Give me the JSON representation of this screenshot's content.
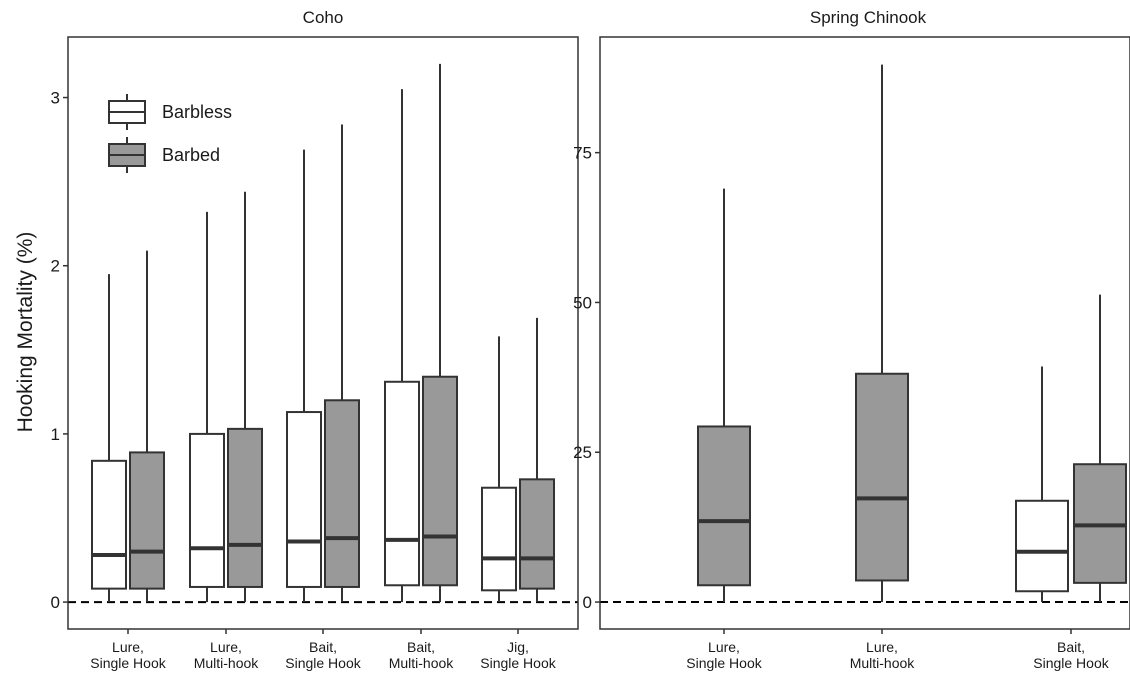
{
  "chart_data": {
    "type": "boxplot",
    "ylabel": "Hooking Mortality (%)",
    "legend": {
      "placement": "top-left",
      "entries": [
        {
          "name": "Barbless",
          "color": "#ffffff"
        },
        {
          "name": "Barbed",
          "color": "#999999"
        }
      ]
    },
    "colors": {
      "Barbless": "#ffffff",
      "Barbed": "#999999",
      "stroke": "#333333"
    },
    "panels": [
      {
        "title": "Coho",
        "ylim": [
          -0.16,
          3.36
        ],
        "yticks": [
          0,
          1,
          2,
          3
        ],
        "categories": [
          [
            "Lure,",
            "Single Hook"
          ],
          [
            "Lure,",
            "Multi-hook"
          ],
          [
            "Bait,",
            "Single Hook"
          ],
          [
            "Bait,",
            "Multi-hook"
          ],
          [
            "Jig,",
            "Single Hook"
          ]
        ],
        "boxes": [
          {
            "category": 0,
            "group": "Barbless",
            "whisker_low": 0,
            "q1": 0.08,
            "median": 0.28,
            "q3": 0.84,
            "whisker_high": 1.95
          },
          {
            "category": 0,
            "group": "Barbed",
            "whisker_low": 0,
            "q1": 0.08,
            "median": 0.3,
            "q3": 0.89,
            "whisker_high": 2.09
          },
          {
            "category": 1,
            "group": "Barbless",
            "whisker_low": 0,
            "q1": 0.09,
            "median": 0.32,
            "q3": 1.0,
            "whisker_high": 2.32
          },
          {
            "category": 1,
            "group": "Barbed",
            "whisker_low": 0,
            "q1": 0.09,
            "median": 0.34,
            "q3": 1.03,
            "whisker_high": 2.44
          },
          {
            "category": 2,
            "group": "Barbless",
            "whisker_low": 0,
            "q1": 0.09,
            "median": 0.36,
            "q3": 1.13,
            "whisker_high": 2.69
          },
          {
            "category": 2,
            "group": "Barbed",
            "whisker_low": 0,
            "q1": 0.09,
            "median": 0.38,
            "q3": 1.2,
            "whisker_high": 2.84
          },
          {
            "category": 3,
            "group": "Barbless",
            "whisker_low": 0,
            "q1": 0.1,
            "median": 0.37,
            "q3": 1.31,
            "whisker_high": 3.05
          },
          {
            "category": 3,
            "group": "Barbed",
            "whisker_low": 0,
            "q1": 0.1,
            "median": 0.39,
            "q3": 1.34,
            "whisker_high": 3.2
          },
          {
            "category": 4,
            "group": "Barbless",
            "whisker_low": 0,
            "q1": 0.07,
            "median": 0.26,
            "q3": 0.68,
            "whisker_high": 1.58
          },
          {
            "category": 4,
            "group": "Barbed",
            "whisker_low": 0,
            "q1": 0.08,
            "median": 0.26,
            "q3": 0.73,
            "whisker_high": 1.69
          }
        ]
      },
      {
        "title": "Spring Chinook",
        "ylim": [
          -4.5,
          94.3
        ],
        "yticks": [
          0,
          25,
          50,
          75
        ],
        "categories": [
          [
            "Lure,",
            "Single Hook"
          ],
          [
            "Lure,",
            "Multi-hook"
          ],
          [
            "Bait,",
            "Single Hook"
          ]
        ],
        "boxes": [
          {
            "category": 0,
            "group": "Barbed",
            "whisker_low": 0,
            "q1": 2.8,
            "median": 13.5,
            "q3": 29.3,
            "whisker_high": 69.0
          },
          {
            "category": 1,
            "group": "Barbed",
            "whisker_low": 0,
            "q1": 3.6,
            "median": 17.3,
            "q3": 38.1,
            "whisker_high": 89.7
          },
          {
            "category": 2,
            "group": "Barbless",
            "whisker_low": 0,
            "q1": 1.8,
            "median": 8.4,
            "q3": 16.9,
            "whisker_high": 39.3
          },
          {
            "category": 2,
            "group": "Barbed",
            "whisker_low": 0,
            "q1": 3.2,
            "median": 12.8,
            "q3": 23.0,
            "whisker_high": 51.3
          }
        ]
      }
    ],
    "reference_line": {
      "y": 0,
      "style": "dashed"
    }
  }
}
